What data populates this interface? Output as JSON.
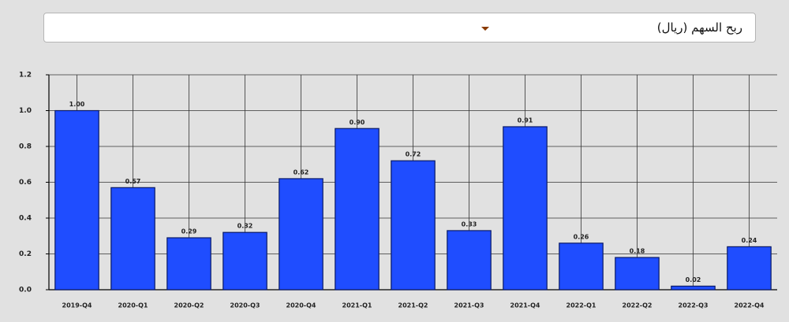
{
  "dropdown": {
    "label": "ربح السهم (ريال)"
  },
  "chart_data": {
    "type": "bar",
    "categories": [
      "2019-Q4",
      "2020-Q1",
      "2020-Q2",
      "2020-Q3",
      "2020-Q4",
      "2021-Q1",
      "2021-Q2",
      "2021-Q3",
      "2021-Q4",
      "2022-Q1",
      "2022-Q2",
      "2022-Q3",
      "2022-Q4"
    ],
    "values": [
      1.0,
      0.57,
      0.29,
      0.32,
      0.62,
      0.9,
      0.72,
      0.33,
      0.91,
      0.26,
      0.18,
      0.02,
      0.24
    ],
    "value_labels": [
      "1.00",
      "0.57",
      "0.29",
      "0.32",
      "0.62",
      "0.90",
      "0.72",
      "0.33",
      "0.91",
      "0.26",
      "0.18",
      "0.02",
      "0.24"
    ],
    "color": "#1f4dff",
    "ylim": [
      0,
      1.2
    ],
    "yticks": [
      {
        "value": 0,
        "label": "0.0"
      },
      0.2,
      0.4,
      0.6,
      0.8,
      {
        "value": 1,
        "label": "1.0"
      },
      1.2
    ],
    "grid": true
  }
}
